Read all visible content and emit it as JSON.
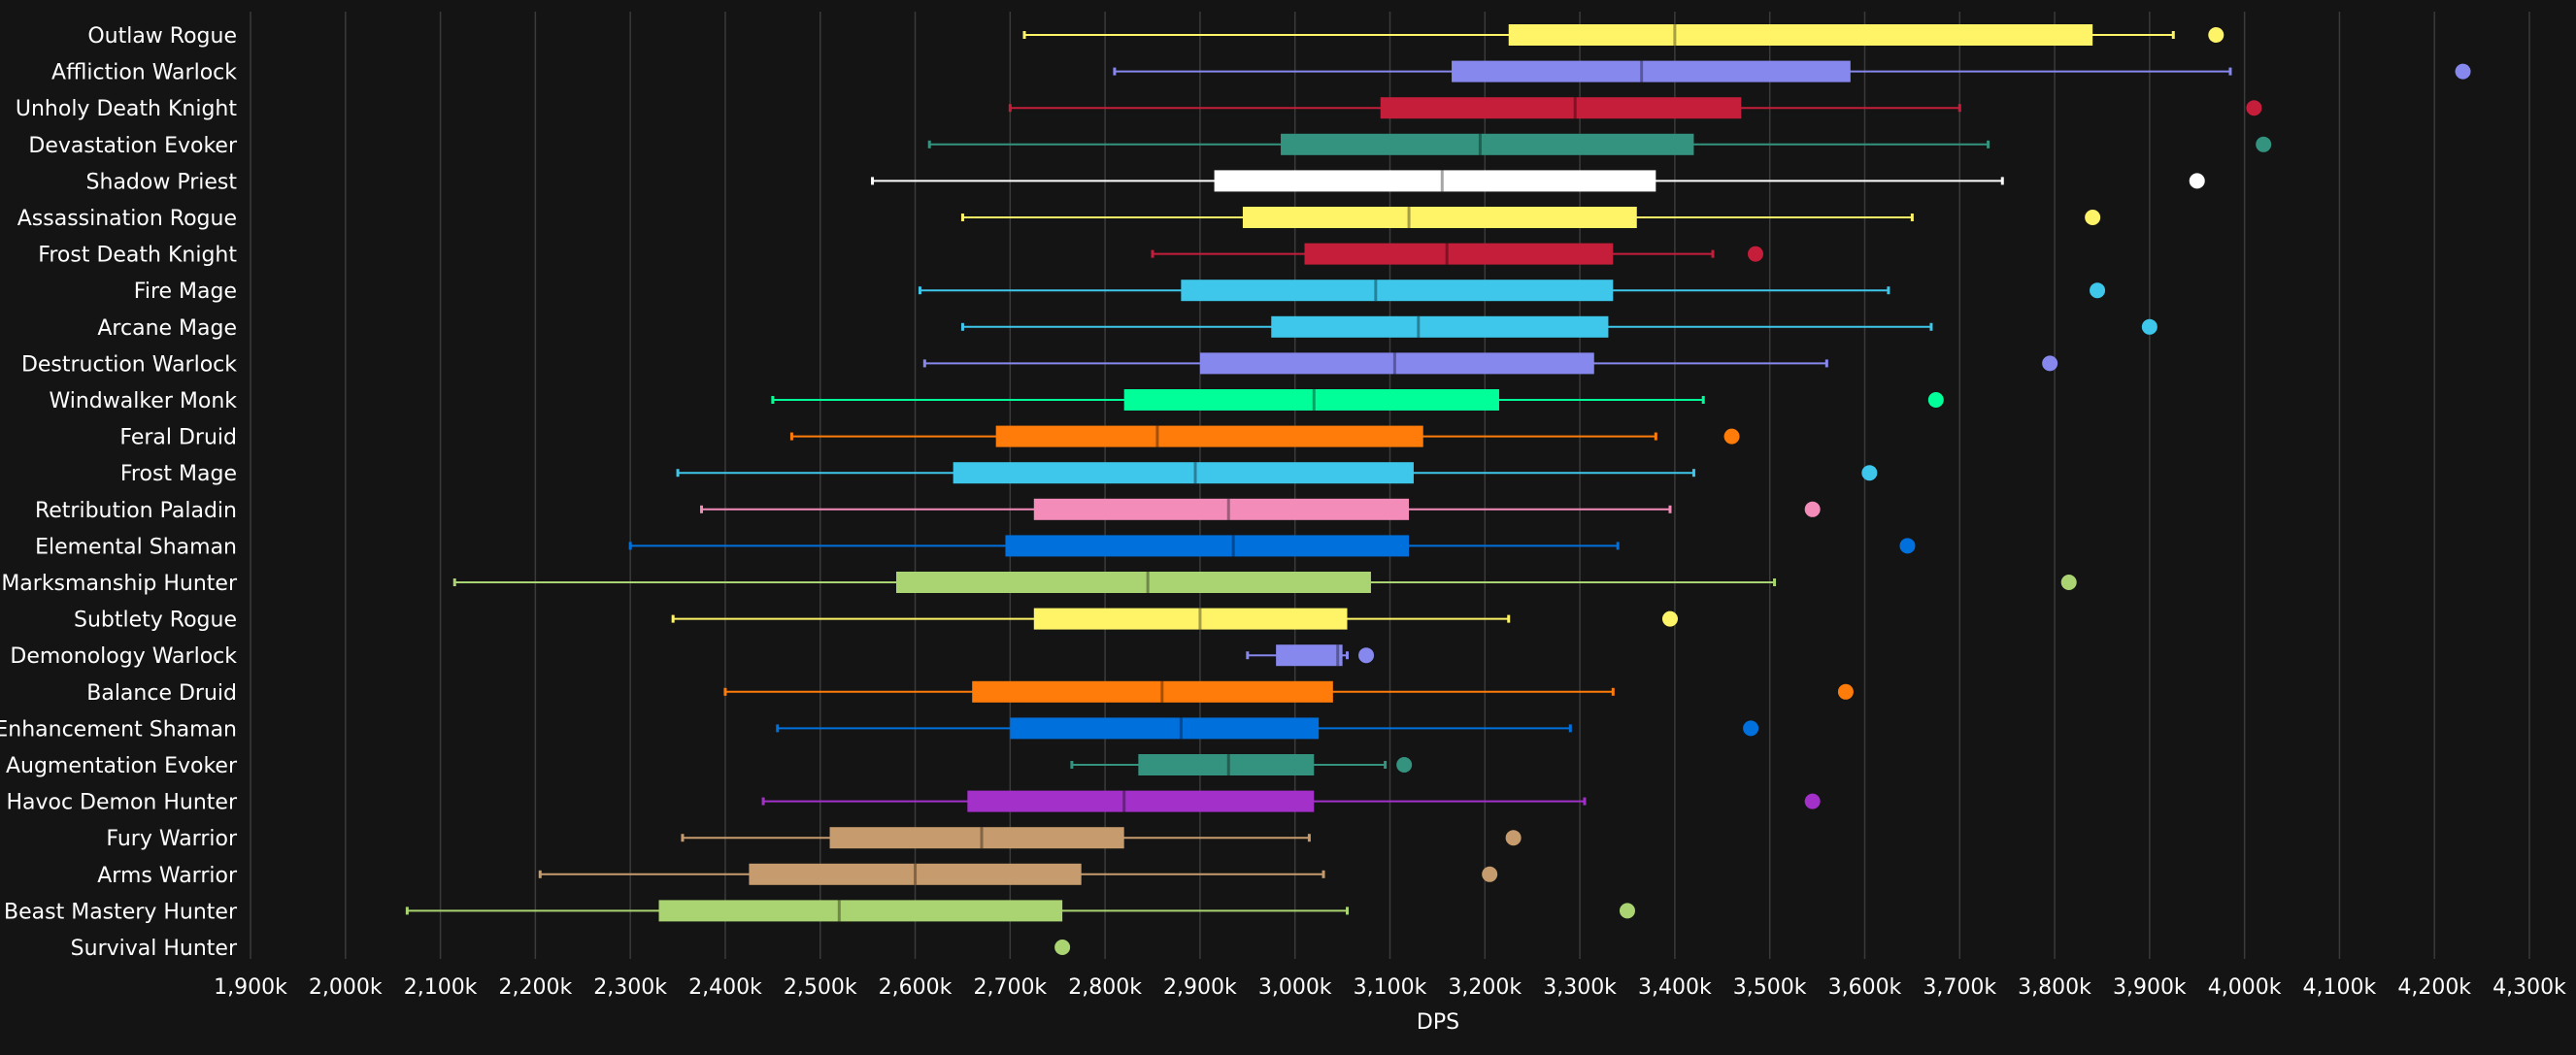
{
  "chart_data": {
    "type": "boxplot",
    "title": "",
    "xlabel": "DPS",
    "ylabel": "",
    "x_unit_suffix": "k",
    "xlim": [
      1900,
      4300
    ],
    "x_ticks": [
      1900,
      2000,
      2100,
      2200,
      2300,
      2400,
      2500,
      2600,
      2700,
      2800,
      2900,
      3000,
      3100,
      3200,
      3300,
      3400,
      3500,
      3600,
      3700,
      3800,
      3900,
      4000,
      4100,
      4200,
      4300
    ],
    "x_tick_labels": [
      "1,900k",
      "2,000k",
      "2,100k",
      "2,200k",
      "2,300k",
      "2,400k",
      "2,500k",
      "2,600k",
      "2,700k",
      "2,800k",
      "2,900k",
      "3,000k",
      "3,100k",
      "3,200k",
      "3,300k",
      "3,400k",
      "3,500k",
      "3,600k",
      "3,700k",
      "3,800k",
      "3,900k",
      "4,000k",
      "4,100k",
      "4,200k",
      "4,300k"
    ],
    "grid": true,
    "legend": "none",
    "categories": [
      "Outlaw Rogue",
      "Affliction Warlock",
      "Unholy Death Knight",
      "Devastation Evoker",
      "Shadow Priest",
      "Assassination Rogue",
      "Frost Death Knight",
      "Fire Mage",
      "Arcane Mage",
      "Destruction Warlock",
      "Windwalker Monk",
      "Feral Druid",
      "Frost Mage",
      "Retribution Paladin",
      "Elemental Shaman",
      "Marksmanship Hunter",
      "Subtlety Rogue",
      "Demonology Warlock",
      "Balance Druid",
      "Enhancement Shaman",
      "Augmentation Evoker",
      "Havoc Demon Hunter",
      "Fury Warrior",
      "Arms Warrior",
      "Beast Mastery Hunter",
      "Survival Hunter"
    ],
    "series": [
      {
        "label": "Outlaw Rogue",
        "color": "#fff468",
        "whisker_low": 2715,
        "q1": 3225,
        "median": 3400,
        "q3": 3840,
        "whisker_high": 3925,
        "outlier": 3970
      },
      {
        "label": "Affliction Warlock",
        "color": "#8788ee",
        "whisker_low": 2810,
        "q1": 3165,
        "median": 3365,
        "q3": 3585,
        "whisker_high": 3985,
        "outlier": 4230
      },
      {
        "label": "Unholy Death Knight",
        "color": "#c41e3a",
        "whisker_low": 2700,
        "q1": 3090,
        "median": 3295,
        "q3": 3470,
        "whisker_high": 3700,
        "outlier": 4010
      },
      {
        "label": "Devastation Evoker",
        "color": "#33937f",
        "whisker_low": 2615,
        "q1": 2985,
        "median": 3195,
        "q3": 3420,
        "whisker_high": 3730,
        "outlier": 4020
      },
      {
        "label": "Shadow Priest",
        "color": "#ffffff",
        "whisker_low": 2555,
        "q1": 2915,
        "median": 3155,
        "q3": 3380,
        "whisker_high": 3745,
        "outlier": 3950
      },
      {
        "label": "Assassination Rogue",
        "color": "#fff468",
        "whisker_low": 2650,
        "q1": 2945,
        "median": 3120,
        "q3": 3360,
        "whisker_high": 3650,
        "outlier": 3840
      },
      {
        "label": "Frost Death Knight",
        "color": "#c41e3a",
        "whisker_low": 2850,
        "q1": 3010,
        "median": 3160,
        "q3": 3335,
        "whisker_high": 3440,
        "outlier": 3485
      },
      {
        "label": "Fire Mage",
        "color": "#3fc7eb",
        "whisker_low": 2605,
        "q1": 2880,
        "median": 3085,
        "q3": 3335,
        "whisker_high": 3625,
        "outlier": 3845
      },
      {
        "label": "Arcane Mage",
        "color": "#3fc7eb",
        "whisker_low": 2650,
        "q1": 2975,
        "median": 3130,
        "q3": 3330,
        "whisker_high": 3670,
        "outlier": 3900
      },
      {
        "label": "Destruction Warlock",
        "color": "#8788ee",
        "whisker_low": 2610,
        "q1": 2900,
        "median": 3105,
        "q3": 3315,
        "whisker_high": 3560,
        "outlier": 3795
      },
      {
        "label": "Windwalker Monk",
        "color": "#00ff98",
        "whisker_low": 2450,
        "q1": 2820,
        "median": 3020,
        "q3": 3215,
        "whisker_high": 3430,
        "outlier": 3675
      },
      {
        "label": "Feral Druid",
        "color": "#ff7c0a",
        "whisker_low": 2470,
        "q1": 2685,
        "median": 2855,
        "q3": 3135,
        "whisker_high": 3380,
        "outlier": 3460
      },
      {
        "label": "Frost Mage",
        "color": "#3fc7eb",
        "whisker_low": 2350,
        "q1": 2640,
        "median": 2895,
        "q3": 3125,
        "whisker_high": 3420,
        "outlier": 3605
      },
      {
        "label": "Retribution Paladin",
        "color": "#f48cba",
        "whisker_low": 2375,
        "q1": 2725,
        "median": 2930,
        "q3": 3120,
        "whisker_high": 3395,
        "outlier": 3545
      },
      {
        "label": "Elemental Shaman",
        "color": "#0070dd",
        "whisker_low": 2300,
        "q1": 2695,
        "median": 2935,
        "q3": 3120,
        "whisker_high": 3340,
        "outlier": 3645
      },
      {
        "label": "Marksmanship Hunter",
        "color": "#aad372",
        "whisker_low": 2115,
        "q1": 2580,
        "median": 2845,
        "q3": 3080,
        "whisker_high": 3505,
        "outlier": 3815
      },
      {
        "label": "Subtlety Rogue",
        "color": "#fff468",
        "whisker_low": 2345,
        "q1": 2725,
        "median": 2900,
        "q3": 3055,
        "whisker_high": 3225,
        "outlier": 3395
      },
      {
        "label": "Demonology Warlock",
        "color": "#8788ee",
        "whisker_low": 2950,
        "q1": 2980,
        "median": 3045,
        "q3": 3050,
        "whisker_high": 3055,
        "outlier": 3075
      },
      {
        "label": "Balance Druid",
        "color": "#ff7c0a",
        "whisker_low": 2400,
        "q1": 2660,
        "median": 2860,
        "q3": 3040,
        "whisker_high": 3335,
        "outlier": 3580
      },
      {
        "label": "Enhancement Shaman",
        "color": "#0070dd",
        "whisker_low": 2455,
        "q1": 2700,
        "median": 2880,
        "q3": 3025,
        "whisker_high": 3290,
        "outlier": 3480
      },
      {
        "label": "Augmentation Evoker",
        "color": "#33937f",
        "whisker_low": 2765,
        "q1": 2835,
        "median": 2930,
        "q3": 3020,
        "whisker_high": 3095,
        "outlier": 3115
      },
      {
        "label": "Havoc Demon Hunter",
        "color": "#a330c9",
        "whisker_low": 2440,
        "q1": 2655,
        "median": 2820,
        "q3": 3020,
        "whisker_high": 3305,
        "outlier": 3545
      },
      {
        "label": "Fury Warrior",
        "color": "#c69b6d",
        "whisker_low": 2355,
        "q1": 2510,
        "median": 2670,
        "q3": 2820,
        "whisker_high": 3015,
        "outlier": 3230
      },
      {
        "label": "Arms Warrior",
        "color": "#c69b6d",
        "whisker_low": 2205,
        "q1": 2425,
        "median": 2600,
        "q3": 2775,
        "whisker_high": 3030,
        "outlier": 3205
      },
      {
        "label": "Beast Mastery Hunter",
        "color": "#aad372",
        "whisker_low": 2065,
        "q1": 2330,
        "median": 2520,
        "q3": 2755,
        "whisker_high": 3055,
        "outlier": 3350
      },
      {
        "label": "Survival Hunter",
        "color": "#aad372",
        "whisker_low": null,
        "q1": null,
        "median": null,
        "q3": null,
        "whisker_high": null,
        "outlier": 2755
      }
    ]
  }
}
